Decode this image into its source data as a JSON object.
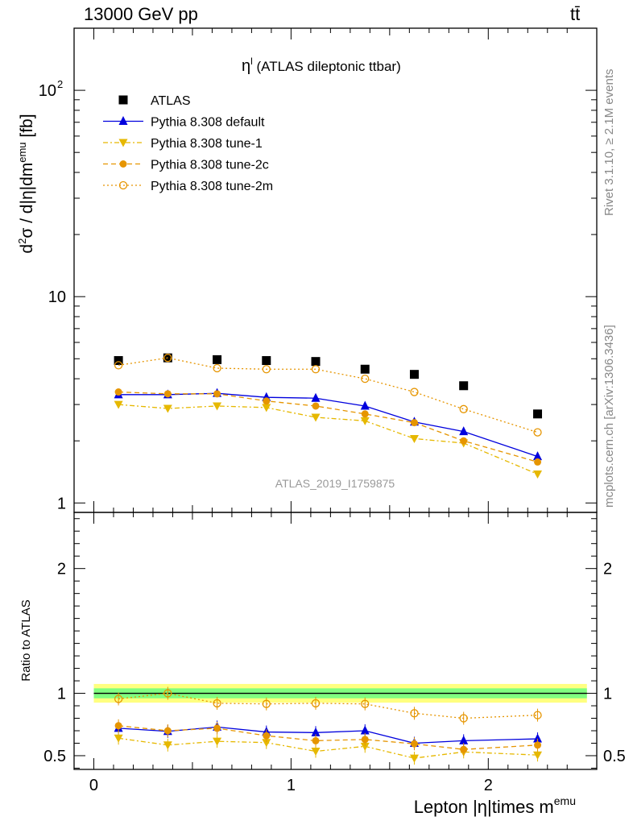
{
  "header": {
    "energy_label": "13000 GeV pp",
    "process_label": "tt̄"
  },
  "side_labels": {
    "rivet": "Rivet 3.1.10, ≥ 2.1M events",
    "mcplots": "mcplots.cern.ch [arXiv:1306.3436]"
  },
  "chart_data": [
    {
      "type": "scatter",
      "panel": "main",
      "title": "η^l (ATLAS dileptonic ttbar)",
      "title_base": "η",
      "title_sup": "l",
      "title_rest": " (ATLAS dileptonic ttbar)",
      "watermark": "ATLAS_2019_I1759875",
      "ylabel": "d²σ / d|η|dm^emu [fb]",
      "ylabel_parts": {
        "a": "d",
        "b": "2",
        "c": "σ / d|η|dm",
        "d": "emu",
        "e": " [fb]"
      },
      "yscale": "log",
      "ylim": [
        0.9,
        200
      ],
      "xlim": [
        -0.1,
        2.55
      ],
      "yticks": [
        {
          "value": 1,
          "label": "1"
        },
        {
          "value": 10,
          "label": "10"
        },
        {
          "value": 100,
          "label": "10",
          "sup": "2"
        }
      ],
      "legend_position": "top-left",
      "x": [
        0.125,
        0.375,
        0.625,
        0.875,
        1.125,
        1.375,
        1.625,
        1.875,
        2.25
      ],
      "series": [
        {
          "name": "ATLAS",
          "color": "#000000",
          "marker": "square",
          "line": "none",
          "values": [
            4.9,
            5.05,
            4.95,
            4.9,
            4.85,
            4.45,
            4.2,
            3.7,
            2.7
          ]
        },
        {
          "name": "Pythia 8.308 default",
          "color": "#0000dd",
          "marker": "triangle-up",
          "line": "solid",
          "values": [
            3.35,
            3.35,
            3.4,
            3.25,
            3.22,
            2.95,
            2.47,
            2.22,
            1.68
          ]
        },
        {
          "name": "Pythia 8.308 tune-1",
          "color": "#e6b800",
          "marker": "triangle-down",
          "line": "dashdot",
          "values": [
            3.0,
            2.87,
            2.95,
            2.9,
            2.6,
            2.5,
            2.05,
            1.95,
            1.38
          ]
        },
        {
          "name": "Pythia 8.308 tune-2c",
          "color": "#e69500",
          "marker": "circle-filled",
          "line": "dashed",
          "values": [
            3.45,
            3.38,
            3.38,
            3.12,
            2.95,
            2.7,
            2.45,
            2.0,
            1.58
          ]
        },
        {
          "name": "Pythia 8.308 tune-2m",
          "color": "#e69500",
          "marker": "circle-open",
          "line": "dotted",
          "values": [
            4.65,
            5.05,
            4.5,
            4.45,
            4.45,
            4.0,
            3.45,
            2.85,
            2.2
          ]
        }
      ]
    },
    {
      "type": "scatter",
      "panel": "ratio",
      "ylabel": "Ratio to ATLAS",
      "xlabel": "Lepton |η|times m^emu",
      "xlabel_base": "Lepton |η|times m",
      "xlabel_sup": "emu",
      "ylim": [
        0.39,
        2.45
      ],
      "xlim": [
        -0.1,
        2.55
      ],
      "xticks": [
        {
          "value": 0,
          "label": "0"
        },
        {
          "value": 1,
          "label": "1"
        },
        {
          "value": 2,
          "label": "2"
        }
      ],
      "yticks": [
        {
          "value": 0.5,
          "label": "0.5"
        },
        {
          "value": 1,
          "label": "1"
        },
        {
          "value": 2,
          "label": "2"
        }
      ],
      "band": {
        "inner_color": "#80ff80",
        "outer_color": "#ffff80",
        "inner_halfwidth": 0.04,
        "outer_halfwidth": 0.075
      },
      "x": [
        0.125,
        0.375,
        0.625,
        0.875,
        1.125,
        1.375,
        1.625,
        1.875,
        2.25
      ],
      "series": [
        {
          "name": "Pythia 8.308 default",
          "color": "#0000dd",
          "marker": "triangle-up",
          "line": "solid",
          "values": [
            0.72,
            0.695,
            0.73,
            0.69,
            0.685,
            0.7,
            0.6,
            0.62,
            0.635
          ]
        },
        {
          "name": "Pythia 8.308 tune-1",
          "color": "#e6b800",
          "marker": "triangle-down",
          "line": "dashdot",
          "values": [
            0.64,
            0.585,
            0.615,
            0.605,
            0.535,
            0.575,
            0.48,
            0.53,
            0.505
          ]
        },
        {
          "name": "Pythia 8.308 tune-2c",
          "color": "#e69500",
          "marker": "circle-filled",
          "line": "dashed",
          "values": [
            0.74,
            0.7,
            0.72,
            0.66,
            0.62,
            0.63,
            0.595,
            0.55,
            0.585
          ]
        },
        {
          "name": "Pythia 8.308 tune-2m",
          "color": "#e69500",
          "marker": "circle-open",
          "line": "dotted",
          "values": [
            0.955,
            1.0,
            0.92,
            0.915,
            0.92,
            0.915,
            0.84,
            0.8,
            0.825
          ]
        }
      ]
    }
  ]
}
